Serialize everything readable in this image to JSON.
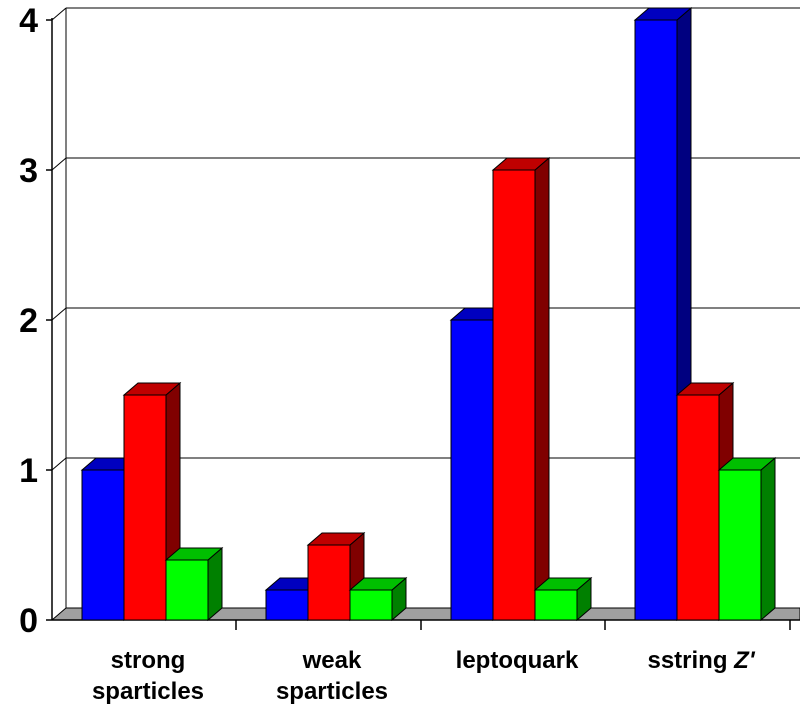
{
  "chart_data": {
    "type": "bar",
    "style": "3d-clustered-column",
    "categories": [
      {
        "lines": [
          "strong",
          "sparticles"
        ]
      },
      {
        "lines": [
          "weak",
          "sparticles"
        ]
      },
      {
        "lines": [
          "leptoquark"
        ]
      },
      {
        "lines": [
          "sstring ",
          "Z'"
        ],
        "inline": true
      }
    ],
    "series": [
      {
        "color": "#0000ff",
        "values": [
          1.0,
          0.2,
          2.0,
          4.0
        ]
      },
      {
        "color": "#ff0000",
        "values": [
          1.5,
          0.5,
          3.0,
          1.5
        ]
      },
      {
        "color": "#00ff00",
        "values": [
          0.4,
          0.2,
          0.2,
          1.0
        ]
      }
    ],
    "yticks": [
      "0",
      "1",
      "2",
      "3",
      "4"
    ],
    "ylim": [
      0,
      4
    ],
    "grid": true,
    "legend": "none"
  }
}
